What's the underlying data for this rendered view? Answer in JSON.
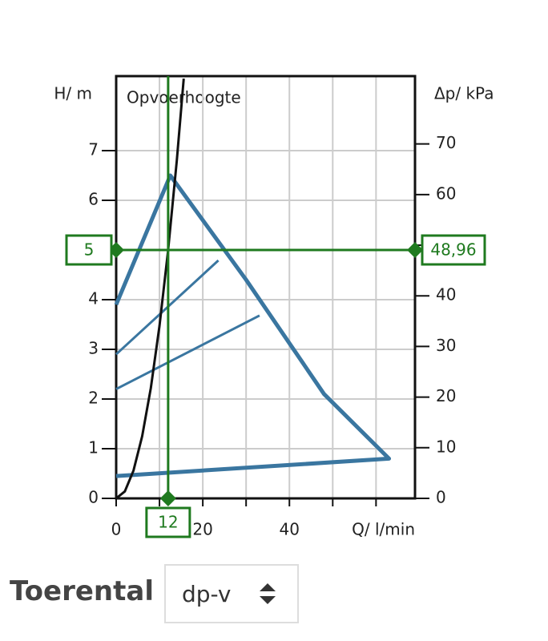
{
  "chart_data": {
    "type": "line",
    "title": "Opvoerhoogte",
    "y_label": "H/ m",
    "y2_label": "Δp/ kPa",
    "x_label": "Q/ l/min",
    "xlim": [
      0,
      69
    ],
    "ylim": [
      0,
      8.5
    ],
    "y2lim": [
      0,
      83.4
    ],
    "xticks": [
      0,
      {
        "value": 10,
        "label": null
      },
      20,
      {
        "value": 30,
        "label": null
      },
      40,
      {
        "value": 50,
        "label": null
      },
      {
        "value": 60,
        "label": null
      }
    ],
    "yticks": [
      0,
      1,
      2,
      3,
      4,
      5,
      6,
      7
    ],
    "y2ticks": [
      0,
      10,
      20,
      30,
      40,
      50,
      60,
      70
    ],
    "grid": true,
    "series": [
      {
        "name": null,
        "color": "#3a76a0",
        "x": [
          0,
          12.5,
          30,
          48,
          63,
          0,
          0
        ],
        "values": [
          3.9,
          6.5,
          4.4,
          2.1,
          0.8,
          0.45,
          0.45
        ]
      },
      {
        "name": null,
        "color": "#3a76a0",
        "x": [
          0,
          23.6
        ],
        "values": [
          2.9,
          4.79
        ]
      },
      {
        "name": null,
        "color": "#3a76a0",
        "x": [
          0,
          33.1
        ],
        "values": [
          2.2,
          3.68
        ]
      },
      {
        "name": null,
        "color": "#111111",
        "x": [
          0,
          2,
          4,
          6,
          8,
          10,
          12,
          14,
          15.6
        ],
        "values": [
          0,
          0.14,
          0.56,
          1.25,
          2.22,
          3.47,
          5,
          6.8,
          8.45
        ]
      }
    ],
    "operating_point": {
      "x": 12,
      "y": 5,
      "x_label": "12",
      "y_label": "5",
      "y2_label": "48,96",
      "color": "#1f7a1f"
    }
  },
  "controls": {
    "label": "Toerental",
    "select": "dp-v"
  }
}
